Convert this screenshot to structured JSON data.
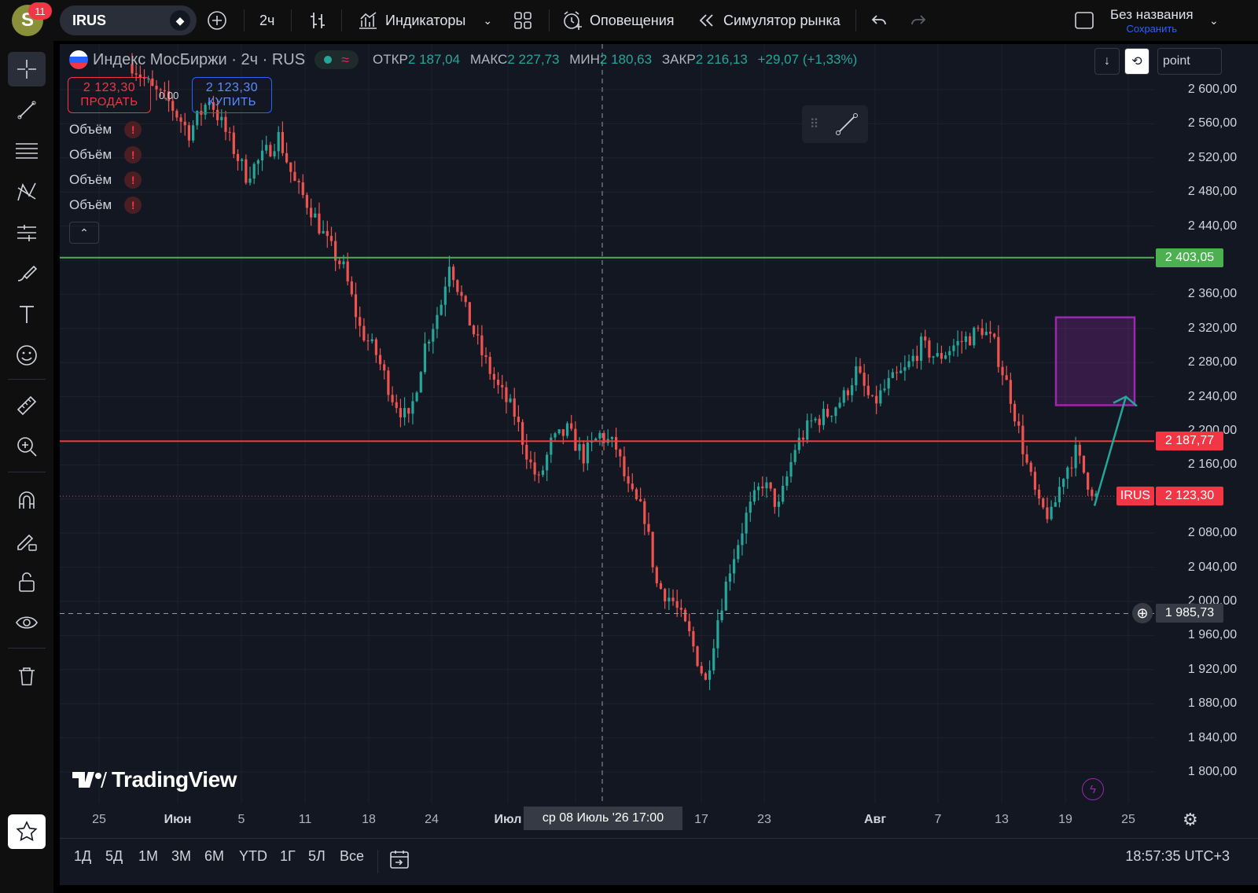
{
  "header": {
    "avatar_letter": "S",
    "notification_count": "11",
    "symbol": "IRUS",
    "timeframe": "2ч",
    "indicators_label": "Индикаторы",
    "alerts_label": "Оповещения",
    "replay_label": "Симулятор рынка",
    "layout_name": "Без названия",
    "save_label": "Сохранить"
  },
  "legend": {
    "title": "Индекс МосБиржи · 2ч · RUS",
    "open_label": "ОТКР",
    "open": "2 187,04",
    "high_label": "МАКС",
    "high": "2 227,73",
    "low_label": "МИН",
    "low": "2 180,63",
    "close_label": "ЗАКР",
    "close": "2 216,13",
    "change": "+29,07 (+1,33%)"
  },
  "trade": {
    "sell_price": "2 123,30",
    "sell_label": "ПРОДАТЬ",
    "spread": "0,00",
    "buy_price": "2 123,30",
    "buy_label": "КУПИТЬ"
  },
  "volumes": [
    "Объём",
    "Объём",
    "Объём",
    "Объём"
  ],
  "scale_mode": "point",
  "price_axis": {
    "ticks": [
      "2 600,00",
      "2 560,00",
      "2 520,00",
      "2 480,00",
      "2 440,00",
      "2 360,00",
      "2 320,00",
      "2 280,00",
      "2 240,00",
      "2 200,00",
      "2 160,00",
      "2 080,00",
      "2 040,00",
      "2 000,00",
      "1 960,00",
      "1 920,00",
      "1 880,00",
      "1 840,00",
      "1 800,00"
    ],
    "green_line_label": "2 403,05",
    "red_line_label": "2 187,77",
    "last_price_symbol": "IRUS",
    "last_price_label": "2 123,30",
    "crosshair_label": "1 985,73"
  },
  "time_axis": {
    "ticks": [
      {
        "text": "25",
        "bold": false
      },
      {
        "text": "Июн",
        "bold": true
      },
      {
        "text": "5",
        "bold": false
      },
      {
        "text": "11",
        "bold": false
      },
      {
        "text": "18",
        "bold": false
      },
      {
        "text": "24",
        "bold": false
      },
      {
        "text": "Июл",
        "bold": true
      },
      {
        "text": "17",
        "bold": false
      },
      {
        "text": "23",
        "bold": false
      },
      {
        "text": "Авг",
        "bold": true
      },
      {
        "text": "7",
        "bold": false
      },
      {
        "text": "13",
        "bold": false
      },
      {
        "text": "19",
        "bold": false
      },
      {
        "text": "25",
        "bold": false
      }
    ],
    "crosshair_label": "ср 08 Июль '26    17:00"
  },
  "brand": "TradingView",
  "ranges": [
    "1Д",
    "5Д",
    "1М",
    "3М",
    "6М",
    "YTD",
    "1Г",
    "5Л",
    "Все"
  ],
  "clock": "18:57:35 UTC+3",
  "chart_data": {
    "type": "candlestick",
    "interval": "2ч",
    "ylim": [
      1770,
      2620
    ],
    "horizontal_lines": [
      {
        "value": 2403.05,
        "color": "#4caf50"
      },
      {
        "value": 2187.77,
        "color": "#f23645"
      }
    ],
    "last_price": 2123.3,
    "crosshair_price": 1985.73,
    "projection_box": {
      "price_top": 2333,
      "price_bottom": 2230,
      "color": "#9c27b0"
    },
    "projection_arrow": {
      "from_price": 2112,
      "to_price": 2240,
      "color": "#26a69a"
    },
    "price_path": [
      [
        0,
        2630
      ],
      [
        5,
        2600
      ],
      [
        9,
        2585
      ],
      [
        14,
        2550
      ],
      [
        19,
        2590
      ],
      [
        24,
        2540
      ],
      [
        28,
        2500
      ],
      [
        32,
        2520
      ],
      [
        36,
        2545
      ],
      [
        40,
        2490
      ],
      [
        44,
        2460
      ],
      [
        48,
        2420
      ],
      [
        52,
        2390
      ],
      [
        56,
        2320
      ],
      [
        60,
        2290
      ],
      [
        64,
        2240
      ],
      [
        68,
        2210
      ],
      [
        72,
        2300
      ],
      [
        76,
        2350
      ],
      [
        78,
        2400
      ],
      [
        82,
        2340
      ],
      [
        86,
        2290
      ],
      [
        90,
        2250
      ],
      [
        94,
        2220
      ],
      [
        98,
        2160
      ],
      [
        100,
        2140
      ],
      [
        103,
        2185
      ],
      [
        107,
        2200
      ],
      [
        111,
        2170
      ],
      [
        115,
        2195
      ],
      [
        119,
        2180
      ],
      [
        122,
        2130
      ],
      [
        126,
        2100
      ],
      [
        129,
        2020
      ],
      [
        133,
        2000
      ],
      [
        137,
        1960
      ],
      [
        141,
        1905
      ],
      [
        144,
        1980
      ],
      [
        147,
        2040
      ],
      [
        151,
        2100
      ],
      [
        155,
        2140
      ],
      [
        159,
        2110
      ],
      [
        163,
        2180
      ],
      [
        167,
        2210
      ],
      [
        171,
        2220
      ],
      [
        175,
        2240
      ],
      [
        178,
        2270
      ],
      [
        182,
        2230
      ],
      [
        186,
        2255
      ],
      [
        190,
        2270
      ],
      [
        194,
        2300
      ],
      [
        198,
        2285
      ],
      [
        202,
        2300
      ],
      [
        206,
        2310
      ],
      [
        209,
        2320
      ],
      [
        212,
        2300
      ],
      [
        216,
        2240
      ],
      [
        220,
        2160
      ],
      [
        223,
        2110
      ],
      [
        226,
        2100
      ],
      [
        229,
        2150
      ],
      [
        232,
        2175
      ],
      [
        235,
        2140
      ],
      [
        237,
        2123
      ]
    ]
  }
}
